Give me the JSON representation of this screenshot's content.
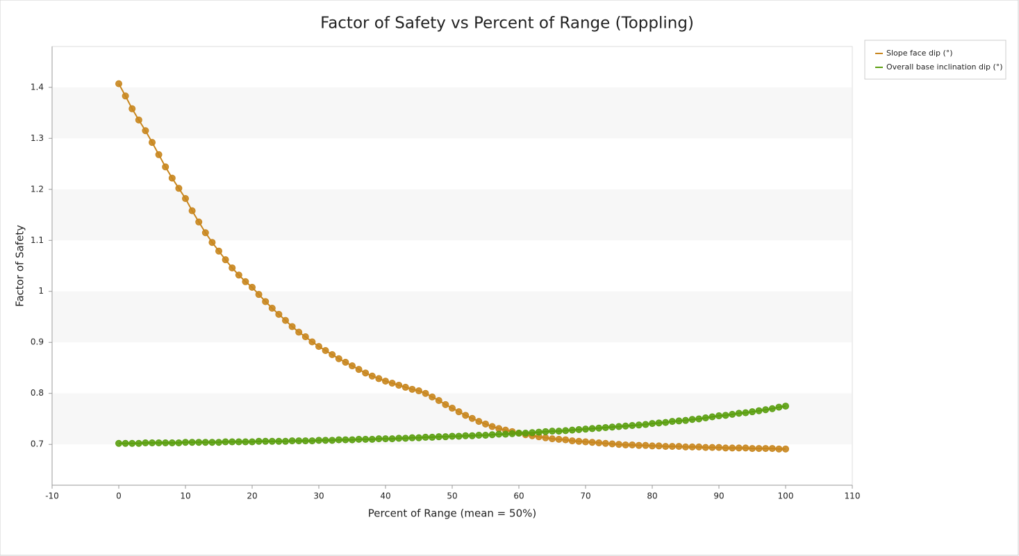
{
  "chart_data": {
    "type": "line",
    "title": "Factor of Safety vs Percent of Range (Toppling)",
    "x_label": "Percent of Range (mean = 50%)",
    "y_label": "Factor of Safety",
    "x": [
      0,
      1,
      2,
      3,
      4,
      5,
      6,
      7,
      8,
      9,
      10,
      11,
      12,
      13,
      14,
      15,
      16,
      17,
      18,
      19,
      20,
      21,
      22,
      23,
      24,
      25,
      26,
      27,
      28,
      29,
      30,
      31,
      32,
      33,
      34,
      35,
      36,
      37,
      38,
      39,
      40,
      41,
      42,
      43,
      44,
      45,
      46,
      47,
      48,
      49,
      50,
      51,
      52,
      53,
      54,
      55,
      56,
      57,
      58,
      59,
      60,
      61,
      62,
      63,
      64,
      65,
      66,
      67,
      68,
      69,
      70,
      71,
      72,
      73,
      74,
      75,
      76,
      77,
      78,
      79,
      80,
      81,
      82,
      83,
      84,
      85,
      86,
      87,
      88,
      89,
      90,
      91,
      92,
      93,
      94,
      95,
      96,
      97,
      98,
      99,
      100
    ],
    "series": [
      {
        "name": "Slope face dip (°)",
        "color": "#c8861e",
        "values": [
          1.407,
          1.383,
          1.358,
          1.336,
          1.315,
          1.292,
          1.268,
          1.244,
          1.222,
          1.202,
          1.182,
          1.158,
          1.136,
          1.115,
          1.096,
          1.079,
          1.062,
          1.046,
          1.032,
          1.019,
          1.008,
          0.994,
          0.98,
          0.967,
          0.955,
          0.943,
          0.931,
          0.92,
          0.911,
          0.901,
          0.892,
          0.884,
          0.876,
          0.868,
          0.861,
          0.854,
          0.847,
          0.84,
          0.834,
          0.829,
          0.824,
          0.82,
          0.816,
          0.812,
          0.808,
          0.805,
          0.8,
          0.793,
          0.786,
          0.778,
          0.771,
          0.764,
          0.757,
          0.751,
          0.745,
          0.74,
          0.735,
          0.731,
          0.728,
          0.725,
          0.722,
          0.719,
          0.717,
          0.715,
          0.713,
          0.711,
          0.71,
          0.709,
          0.707,
          0.706,
          0.705,
          0.704,
          0.703,
          0.702,
          0.701,
          0.7,
          0.699,
          0.699,
          0.698,
          0.698,
          0.697,
          0.697,
          0.696,
          0.696,
          0.696,
          0.695,
          0.695,
          0.695,
          0.694,
          0.694,
          0.694,
          0.693,
          0.693,
          0.693,
          0.693,
          0.692,
          0.692,
          0.692,
          0.692,
          0.691,
          0.691
        ]
      },
      {
        "name": "Overall base inclination dip (°)",
        "color": "#5a9e0f",
        "values": [
          0.702,
          0.702,
          0.702,
          0.702,
          0.703,
          0.703,
          0.703,
          0.703,
          0.703,
          0.703,
          0.704,
          0.704,
          0.704,
          0.704,
          0.704,
          0.704,
          0.705,
          0.705,
          0.705,
          0.705,
          0.705,
          0.706,
          0.706,
          0.706,
          0.706,
          0.706,
          0.707,
          0.707,
          0.707,
          0.707,
          0.708,
          0.708,
          0.708,
          0.709,
          0.709,
          0.709,
          0.71,
          0.71,
          0.71,
          0.711,
          0.711,
          0.711,
          0.712,
          0.712,
          0.713,
          0.713,
          0.714,
          0.714,
          0.715,
          0.715,
          0.716,
          0.716,
          0.717,
          0.717,
          0.718,
          0.718,
          0.719,
          0.72,
          0.72,
          0.721,
          0.722,
          0.722,
          0.723,
          0.724,
          0.725,
          0.726,
          0.726,
          0.727,
          0.728,
          0.729,
          0.73,
          0.731,
          0.732,
          0.733,
          0.734,
          0.735,
          0.736,
          0.737,
          0.738,
          0.739,
          0.741,
          0.742,
          0.743,
          0.745,
          0.746,
          0.747,
          0.749,
          0.75,
          0.752,
          0.754,
          0.756,
          0.757,
          0.759,
          0.761,
          0.762,
          0.764,
          0.766,
          0.768,
          0.77,
          0.773,
          0.775
        ]
      }
    ],
    "xlim": [
      -10,
      110
    ],
    "xticks": [
      -10,
      0,
      10,
      20,
      30,
      40,
      50,
      60,
      70,
      80,
      90,
      100,
      110
    ],
    "ylim": [
      0.62,
      1.48
    ],
    "yticks": [
      0.7,
      0.8,
      0.9,
      1,
      1.1,
      1.2,
      1.3,
      1.4
    ],
    "banded_grid": true,
    "markers": true,
    "legend": "outside-top-right"
  }
}
